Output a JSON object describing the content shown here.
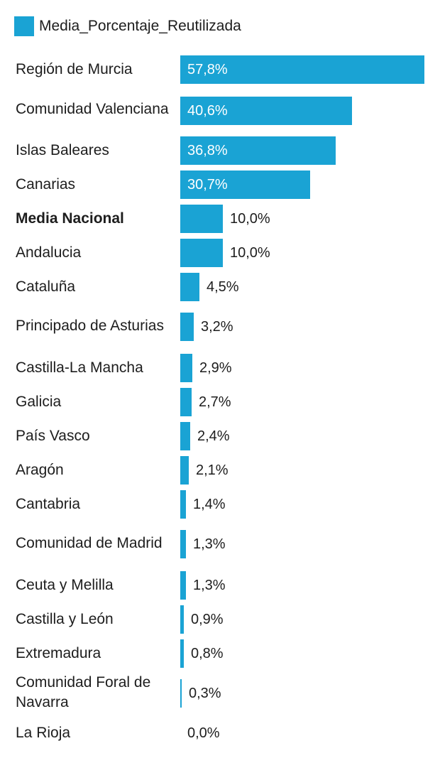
{
  "chart_data": {
    "type": "bar",
    "orientation": "horizontal",
    "legend": {
      "position": "top-left",
      "entries": [
        "Media_Porcentaje_Reutilizada"
      ]
    },
    "color": "#1aa3d4",
    "xlim": [
      0,
      57.8
    ],
    "categories": [
      "Región de Murcia",
      "Comunidad Valenciana",
      "Islas Baleares",
      "Canarias",
      "Media Nacional",
      "Andalucia",
      "Cataluña",
      "Principado de Asturias",
      "Castilla-La Mancha",
      "Galicia",
      "País Vasco",
      "Aragón",
      "Cantabria",
      "Comunidad de Madrid",
      "Ceuta y Melilla",
      "Castilla y León",
      "Extremadura",
      "Comunidad Foral de Navarra",
      "La Rioja"
    ],
    "series": [
      {
        "name": "Media_Porcentaje_Reutilizada",
        "values": [
          57.8,
          40.6,
          36.8,
          30.7,
          10.0,
          10.0,
          4.5,
          3.2,
          2.9,
          2.7,
          2.4,
          2.1,
          1.4,
          1.3,
          1.3,
          0.9,
          0.8,
          0.3,
          0.0
        ],
        "labels": [
          "57,8%",
          "40,6%",
          "36,8%",
          "30,7%",
          "10,0%",
          "10,0%",
          "4,5%",
          "3,2%",
          "2,9%",
          "2,7%",
          "2,4%",
          "2,1%",
          "1,4%",
          "1,3%",
          "1,3%",
          "0,9%",
          "0,8%",
          "0,3%",
          "0,0%"
        ]
      }
    ],
    "bold_categories": [
      "Media Nacional"
    ]
  }
}
